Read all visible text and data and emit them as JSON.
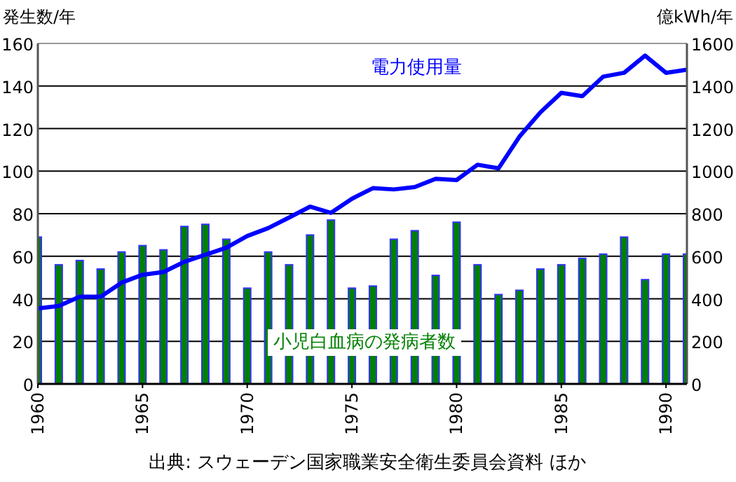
{
  "chart_data": {
    "type": "bar",
    "ylabel": "発生数/年",
    "y2label": "億kWh/年",
    "x": [
      1960,
      1961,
      1962,
      1963,
      1964,
      1965,
      1966,
      1967,
      1968,
      1969,
      1970,
      1971,
      1972,
      1973,
      1974,
      1975,
      1976,
      1977,
      1978,
      1979,
      1980,
      1981,
      1982,
      1983,
      1984,
      1985,
      1986,
      1987,
      1988,
      1989,
      1990,
      1991
    ],
    "series": [
      {
        "name": "小児白血病の発病者数",
        "color": "#008000",
        "values": [
          69,
          56,
          58,
          54,
          62,
          65,
          63,
          74,
          75,
          68,
          45,
          62,
          56,
          70,
          77,
          45,
          46,
          68,
          72,
          51,
          76,
          56,
          42,
          44,
          54,
          56,
          59,
          61,
          69,
          49,
          61,
          61
        ]
      },
      {
        "name": "電力使用量",
        "type": "line",
        "axis": "y2",
        "color": "#0000ff",
        "values": [
          355,
          366,
          410,
          410,
          476,
          513,
          526,
          574,
          607,
          640,
          695,
          732,
          782,
          833,
          804,
          870,
          920,
          914,
          925,
          964,
          958,
          1030,
          1013,
          1162,
          1276,
          1368,
          1352,
          1444,
          1462,
          1543,
          1462,
          1477
        ]
      }
    ],
    "xlim": [
      1960,
      1991
    ],
    "xticks": [
      1960,
      1965,
      1970,
      1975,
      1980,
      1985,
      1990
    ],
    "ylim": [
      0,
      160
    ],
    "yticks": [
      0,
      20,
      40,
      60,
      80,
      100,
      120,
      140,
      160
    ],
    "y2lim": [
      0,
      1600
    ],
    "y2ticks": [
      0,
      200,
      400,
      600,
      800,
      1000,
      1200,
      1400,
      1600
    ],
    "grid": "y",
    "legend": false,
    "annotations": [
      "出典: スウェーデン国家職業安全衛生委員会資料 ほか"
    ]
  }
}
